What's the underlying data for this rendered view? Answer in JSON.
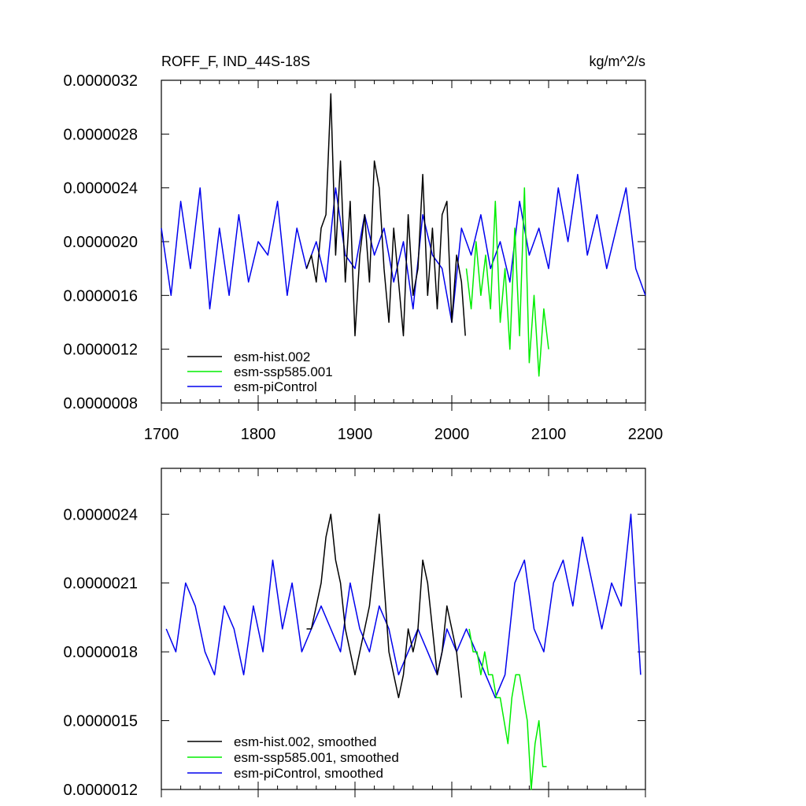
{
  "chart_data": [
    {
      "type": "line",
      "title": "ROFF_F, IND_44S-18S",
      "units": "kg/m^2/s",
      "xlim": [
        1700,
        2200
      ],
      "ylim": [
        8e-07,
        3.2e-06
      ],
      "xticks": [
        1700,
        1800,
        1900,
        2000,
        2100,
        2200
      ],
      "xtick_labels": [
        "1700",
        "1800",
        "1900",
        "2000",
        "2100",
        "2200"
      ],
      "yticks": [
        8e-07,
        1.2e-06,
        1.6e-06,
        2e-06,
        2.4e-06,
        2.8e-06,
        3.2e-06
      ],
      "ytick_labels": [
        "0.0000008",
        "0.0000012",
        "0.0000016",
        "0.0000020",
        "0.0000024",
        "0.0000028",
        "0.0000032"
      ],
      "legend_position": "bottom-left",
      "series": [
        {
          "name": "esm-hist.002",
          "color": "#000000",
          "x": [
            1850,
            1855,
            1860,
            1865,
            1870,
            1875,
            1880,
            1885,
            1890,
            1895,
            1900,
            1905,
            1910,
            1915,
            1920,
            1925,
            1930,
            1935,
            1940,
            1945,
            1950,
            1955,
            1960,
            1965,
            1970,
            1975,
            1980,
            1985,
            1990,
            1995,
            2000,
            2005,
            2010,
            2014
          ],
          "values": [
            1.8e-06,
            1.9e-06,
            1.7e-06,
            2.1e-06,
            2.2e-06,
            3.1e-06,
            1.9e-06,
            2.6e-06,
            1.7e-06,
            2.3e-06,
            1.3e-06,
            1.9e-06,
            2.2e-06,
            1.7e-06,
            2.6e-06,
            2.4e-06,
            1.8e-06,
            1.4e-06,
            2.1e-06,
            1.7e-06,
            1.3e-06,
            2.2e-06,
            1.6e-06,
            1.8e-06,
            2.5e-06,
            1.6e-06,
            2.1e-06,
            1.5e-06,
            2.2e-06,
            2.3e-06,
            1.4e-06,
            1.9e-06,
            1.7e-06,
            1.3e-06
          ]
        },
        {
          "name": "esm-ssp585.001",
          "color": "#00ee00",
          "x": [
            2015,
            2020,
            2025,
            2030,
            2035,
            2040,
            2045,
            2050,
            2055,
            2060,
            2065,
            2070,
            2075,
            2080,
            2085,
            2090,
            2095,
            2100
          ],
          "values": [
            1.8e-06,
            1.5e-06,
            2e-06,
            1.6e-06,
            1.9e-06,
            1.5e-06,
            2.3e-06,
            1.4e-06,
            1.8e-06,
            1.2e-06,
            2.1e-06,
            1.3e-06,
            2.4e-06,
            1.1e-06,
            1.6e-06,
            1e-06,
            1.5e-06,
            1.2e-06
          ]
        },
        {
          "name": "esm-piControl",
          "color": "#0000ee",
          "x": [
            1700,
            1710,
            1720,
            1730,
            1740,
            1750,
            1760,
            1770,
            1780,
            1790,
            1800,
            1810,
            1820,
            1830,
            1840,
            1850,
            1860,
            1870,
            1880,
            1890,
            1900,
            1910,
            1920,
            1930,
            1940,
            1950,
            1960,
            1970,
            1980,
            1990,
            2000,
            2010,
            2020,
            2030,
            2040,
            2050,
            2060,
            2070,
            2080,
            2090,
            2100,
            2110,
            2120,
            2130,
            2140,
            2150,
            2160,
            2170,
            2180,
            2190,
            2200
          ],
          "values": [
            2.1e-06,
            1.6e-06,
            2.3e-06,
            1.8e-06,
            2.4e-06,
            1.5e-06,
            2.1e-06,
            1.6e-06,
            2.2e-06,
            1.7e-06,
            2e-06,
            1.9e-06,
            2.3e-06,
            1.6e-06,
            2.1e-06,
            1.8e-06,
            2e-06,
            1.7e-06,
            2.4e-06,
            1.9e-06,
            1.8e-06,
            2.2e-06,
            1.9e-06,
            2.1e-06,
            1.7e-06,
            2e-06,
            1.5e-06,
            2.2e-06,
            1.9e-06,
            1.8e-06,
            1.4e-06,
            2.1e-06,
            1.9e-06,
            2.2e-06,
            1.8e-06,
            2e-06,
            1.7e-06,
            2.3e-06,
            1.9e-06,
            2.1e-06,
            1.8e-06,
            2.4e-06,
            2e-06,
            2.5e-06,
            1.9e-06,
            2.2e-06,
            1.8e-06,
            2.1e-06,
            2.4e-06,
            1.8e-06,
            1.6e-06
          ]
        }
      ]
    },
    {
      "type": "line",
      "title": "",
      "xlim": [
        1700,
        2200
      ],
      "ylim": [
        1.2e-06,
        2.6e-06
      ],
      "yticks": [
        1.2e-06,
        1.5e-06,
        1.8e-06,
        2.1e-06,
        2.4e-06
      ],
      "ytick_labels": [
        "0.0000012",
        "0.0000015",
        "0.0000018",
        "0.0000021",
        "0.0000024"
      ],
      "legend_position": "bottom-left",
      "series": [
        {
          "name": "esm-hist.002, smoothed",
          "color": "#000000",
          "x": [
            1850,
            1855,
            1860,
            1865,
            1870,
            1875,
            1880,
            1885,
            1890,
            1895,
            1900,
            1905,
            1910,
            1915,
            1920,
            1925,
            1930,
            1935,
            1940,
            1945,
            1950,
            1955,
            1960,
            1965,
            1970,
            1975,
            1980,
            1985,
            1990,
            1995,
            2000,
            2005,
            2010
          ],
          "values": [
            1.9e-06,
            1.9e-06,
            2e-06,
            2.1e-06,
            2.3e-06,
            2.4e-06,
            2.2e-06,
            2.1e-06,
            1.9e-06,
            1.8e-06,
            1.7e-06,
            1.8e-06,
            1.9e-06,
            2e-06,
            2.2e-06,
            2.4e-06,
            2.1e-06,
            1.8e-06,
            1.7e-06,
            1.6e-06,
            1.7e-06,
            1.9e-06,
            1.8e-06,
            1.9e-06,
            2.2e-06,
            2.1e-06,
            1.9e-06,
            1.7e-06,
            1.8e-06,
            2e-06,
            1.9e-06,
            1.8e-06,
            1.6e-06
          ]
        },
        {
          "name": "esm-ssp585.001, smoothed",
          "color": "#00ee00",
          "x": [
            2018,
            2022,
            2026,
            2030,
            2034,
            2038,
            2042,
            2046,
            2050,
            2054,
            2058,
            2062,
            2066,
            2070,
            2074,
            2078,
            2082,
            2086,
            2090,
            2094,
            2098
          ],
          "values": [
            1.9e-06,
            1.8e-06,
            1.8e-06,
            1.7e-06,
            1.8e-06,
            1.7e-06,
            1.7e-06,
            1.6e-06,
            1.6e-06,
            1.5e-06,
            1.4e-06,
            1.6e-06,
            1.7e-06,
            1.7e-06,
            1.6e-06,
            1.5e-06,
            1.2e-06,
            1.4e-06,
            1.5e-06,
            1.3e-06,
            1.3e-06
          ]
        },
        {
          "name": "esm-piControl, smoothed",
          "color": "#0000ee",
          "x": [
            1705,
            1715,
            1725,
            1735,
            1745,
            1755,
            1765,
            1775,
            1785,
            1795,
            1805,
            1815,
            1825,
            1835,
            1845,
            1855,
            1865,
            1875,
            1885,
            1895,
            1905,
            1915,
            1925,
            1935,
            1945,
            1955,
            1965,
            1975,
            1985,
            1995,
            2005,
            2015,
            2025,
            2035,
            2045,
            2055,
            2065,
            2075,
            2085,
            2095,
            2105,
            2115,
            2125,
            2135,
            2145,
            2155,
            2165,
            2175,
            2185,
            2195
          ],
          "values": [
            1.9e-06,
            1.8e-06,
            2.1e-06,
            2e-06,
            1.8e-06,
            1.7e-06,
            2e-06,
            1.9e-06,
            1.7e-06,
            2e-06,
            1.8e-06,
            2.2e-06,
            1.9e-06,
            2.1e-06,
            1.8e-06,
            1.9e-06,
            2e-06,
            1.9e-06,
            1.8e-06,
            2.1e-06,
            1.9e-06,
            1.8e-06,
            2e-06,
            1.9e-06,
            1.7e-06,
            1.8e-06,
            1.9e-06,
            1.8e-06,
            1.7e-06,
            1.9e-06,
            1.8e-06,
            1.9e-06,
            1.8e-06,
            1.7e-06,
            1.6e-06,
            1.7e-06,
            2.1e-06,
            2.2e-06,
            1.9e-06,
            1.8e-06,
            2.1e-06,
            2.2e-06,
            2e-06,
            2.3e-06,
            2.1e-06,
            1.9e-06,
            2.1e-06,
            2e-06,
            2.4e-06,
            1.7e-06
          ]
        }
      ]
    }
  ]
}
